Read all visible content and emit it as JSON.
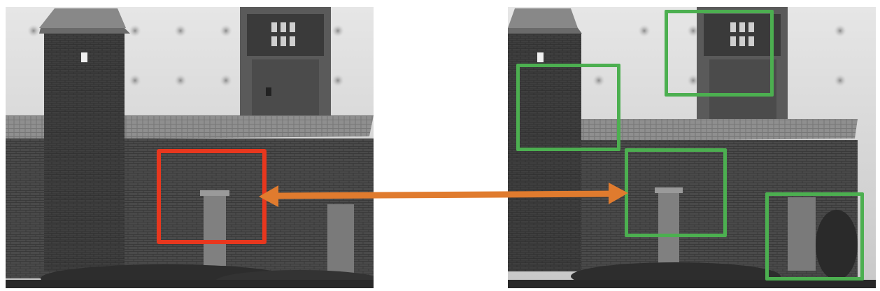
{
  "colors": {
    "query_box": "#e8371e",
    "candidate_box": "#4caf50",
    "match_arrow": "#e07b2e",
    "sky": "#d9d9d9",
    "wall": "#4a4a4a",
    "tower": "#3c3c3c",
    "roof": "#8a8a8a",
    "door": "#7c7c7c",
    "ground": "#2f2f2f"
  },
  "icons": {
    "arrow": "double-headed-arrow-icon"
  }
}
